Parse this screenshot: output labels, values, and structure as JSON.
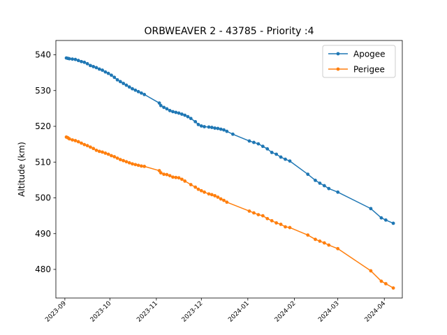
{
  "chart_data": {
    "type": "line",
    "title": "ORBWEAVER 2 - 43785 - Priority :4",
    "xlabel": "",
    "ylabel": "Altitude (km)",
    "xlim": [
      "2023-08-26",
      "2024-04-13"
    ],
    "ylim": [
      472,
      544
    ],
    "x_ticks": [
      "2023-09",
      "2023-10",
      "2023-11",
      "2023-12",
      "2024-01",
      "2024-02",
      "2024-03",
      "2024-04"
    ],
    "y_ticks": [
      480,
      490,
      500,
      510,
      520,
      530,
      540
    ],
    "grid": false,
    "legend": "top-right",
    "series": [
      {
        "name": "Apogee",
        "color": "#1f77b4",
        "marker": "circle",
        "points": [
          [
            "2023-09-02",
            539.1
          ],
          [
            "2023-09-03",
            539.0
          ],
          [
            "2023-09-04",
            538.9
          ],
          [
            "2023-09-06",
            538.8
          ],
          [
            "2023-09-08",
            538.7
          ],
          [
            "2023-09-10",
            538.4
          ],
          [
            "2023-09-12",
            538.1
          ],
          [
            "2023-09-14",
            537.9
          ],
          [
            "2023-09-16",
            537.5
          ],
          [
            "2023-09-18",
            537.0
          ],
          [
            "2023-09-20",
            536.7
          ],
          [
            "2023-09-22",
            536.4
          ],
          [
            "2023-09-24",
            536.0
          ],
          [
            "2023-09-26",
            535.7
          ],
          [
            "2023-09-28",
            535.2
          ],
          [
            "2023-09-30",
            534.8
          ],
          [
            "2023-10-02",
            534.3
          ],
          [
            "2023-10-04",
            533.7
          ],
          [
            "2023-10-06",
            533.0
          ],
          [
            "2023-10-08",
            532.5
          ],
          [
            "2023-10-10",
            532.0
          ],
          [
            "2023-10-12",
            531.5
          ],
          [
            "2023-10-14",
            531.0
          ],
          [
            "2023-10-16",
            530.5
          ],
          [
            "2023-10-18",
            530.1
          ],
          [
            "2023-10-20",
            529.7
          ],
          [
            "2023-10-22",
            529.3
          ],
          [
            "2023-10-24",
            528.9
          ],
          [
            "2023-11-03",
            526.5
          ],
          [
            "2023-11-04",
            525.8
          ],
          [
            "2023-11-06",
            525.3
          ],
          [
            "2023-11-08",
            524.9
          ],
          [
            "2023-11-10",
            524.4
          ],
          [
            "2023-11-12",
            524.1
          ],
          [
            "2023-11-14",
            523.9
          ],
          [
            "2023-11-16",
            523.7
          ],
          [
            "2023-11-18",
            523.4
          ],
          [
            "2023-11-20",
            523.1
          ],
          [
            "2023-11-22",
            522.7
          ],
          [
            "2023-11-24",
            522.2
          ],
          [
            "2023-11-27",
            521.3
          ],
          [
            "2023-11-29",
            520.5
          ],
          [
            "2023-12-01",
            520.1
          ],
          [
            "2023-12-03",
            519.9
          ],
          [
            "2023-12-06",
            519.8
          ],
          [
            "2023-12-08",
            519.7
          ],
          [
            "2023-12-10",
            519.5
          ],
          [
            "2023-12-12",
            519.4
          ],
          [
            "2023-12-14",
            519.2
          ],
          [
            "2023-12-16",
            519.0
          ],
          [
            "2023-12-18",
            518.6
          ],
          [
            "2023-12-22",
            517.8
          ],
          [
            "2024-01-02",
            515.9
          ],
          [
            "2024-01-05",
            515.5
          ],
          [
            "2024-01-08",
            515.1
          ],
          [
            "2024-01-11",
            514.4
          ],
          [
            "2024-01-14",
            513.7
          ],
          [
            "2024-01-17",
            512.7
          ],
          [
            "2024-01-20",
            512.2
          ],
          [
            "2024-01-23",
            511.4
          ],
          [
            "2024-01-26",
            510.8
          ],
          [
            "2024-01-29",
            510.3
          ],
          [
            "2024-02-10",
            506.6
          ],
          [
            "2024-02-15",
            504.9
          ],
          [
            "2024-02-18",
            504.1
          ],
          [
            "2024-02-21",
            503.4
          ],
          [
            "2024-02-24",
            502.6
          ],
          [
            "2024-03-01",
            501.6
          ],
          [
            "2024-03-23",
            497.0
          ],
          [
            "2024-03-30",
            494.4
          ],
          [
            "2024-04-02",
            493.8
          ],
          [
            "2024-04-07",
            492.9
          ]
        ]
      },
      {
        "name": "Perigee",
        "color": "#ff7f0e",
        "marker": "circle",
        "points": [
          [
            "2023-09-02",
            517.0
          ],
          [
            "2023-09-03",
            516.8
          ],
          [
            "2023-09-04",
            516.5
          ],
          [
            "2023-09-06",
            516.2
          ],
          [
            "2023-09-08",
            516.0
          ],
          [
            "2023-09-10",
            515.7
          ],
          [
            "2023-09-12",
            515.3
          ],
          [
            "2023-09-14",
            514.9
          ],
          [
            "2023-09-16",
            514.6
          ],
          [
            "2023-09-18",
            514.2
          ],
          [
            "2023-09-20",
            513.8
          ],
          [
            "2023-09-22",
            513.3
          ],
          [
            "2023-09-24",
            513.0
          ],
          [
            "2023-09-26",
            512.8
          ],
          [
            "2023-09-28",
            512.5
          ],
          [
            "2023-09-30",
            512.2
          ],
          [
            "2023-10-02",
            511.8
          ],
          [
            "2023-10-04",
            511.5
          ],
          [
            "2023-10-06",
            511.1
          ],
          [
            "2023-10-08",
            510.7
          ],
          [
            "2023-10-10",
            510.4
          ],
          [
            "2023-10-12",
            510.1
          ],
          [
            "2023-10-14",
            509.8
          ],
          [
            "2023-10-16",
            509.5
          ],
          [
            "2023-10-18",
            509.3
          ],
          [
            "2023-10-20",
            509.1
          ],
          [
            "2023-10-22",
            508.9
          ],
          [
            "2023-10-24",
            508.8
          ],
          [
            "2023-11-03",
            507.6
          ],
          [
            "2023-11-04",
            507.0
          ],
          [
            "2023-11-06",
            506.6
          ],
          [
            "2023-11-08",
            506.5
          ],
          [
            "2023-11-10",
            506.2
          ],
          [
            "2023-11-12",
            505.8
          ],
          [
            "2023-11-14",
            505.7
          ],
          [
            "2023-11-16",
            505.6
          ],
          [
            "2023-11-18",
            505.2
          ],
          [
            "2023-11-20",
            504.7
          ],
          [
            "2023-11-24",
            503.7
          ],
          [
            "2023-11-27",
            503.0
          ],
          [
            "2023-11-29",
            502.4
          ],
          [
            "2023-12-01",
            502.0
          ],
          [
            "2023-12-03",
            501.6
          ],
          [
            "2023-12-06",
            501.1
          ],
          [
            "2023-12-08",
            500.9
          ],
          [
            "2023-12-10",
            500.6
          ],
          [
            "2023-12-12",
            500.2
          ],
          [
            "2023-12-14",
            499.7
          ],
          [
            "2023-12-16",
            499.3
          ],
          [
            "2023-12-18",
            498.8
          ],
          [
            "2024-01-02",
            496.3
          ],
          [
            "2024-01-05",
            495.8
          ],
          [
            "2024-01-08",
            495.3
          ],
          [
            "2024-01-11",
            495.0
          ],
          [
            "2024-01-14",
            494.2
          ],
          [
            "2024-01-17",
            493.6
          ],
          [
            "2024-01-20",
            493.0
          ],
          [
            "2024-01-23",
            492.6
          ],
          [
            "2024-01-26",
            491.9
          ],
          [
            "2024-01-29",
            491.7
          ],
          [
            "2024-02-10",
            489.6
          ],
          [
            "2024-02-15",
            488.4
          ],
          [
            "2024-02-18",
            487.9
          ],
          [
            "2024-02-21",
            487.4
          ],
          [
            "2024-02-24",
            486.8
          ],
          [
            "2024-03-01",
            485.8
          ],
          [
            "2024-03-23",
            479.6
          ],
          [
            "2024-03-30",
            476.7
          ],
          [
            "2024-04-02",
            476.0
          ],
          [
            "2024-04-07",
            474.8
          ]
        ]
      }
    ]
  }
}
